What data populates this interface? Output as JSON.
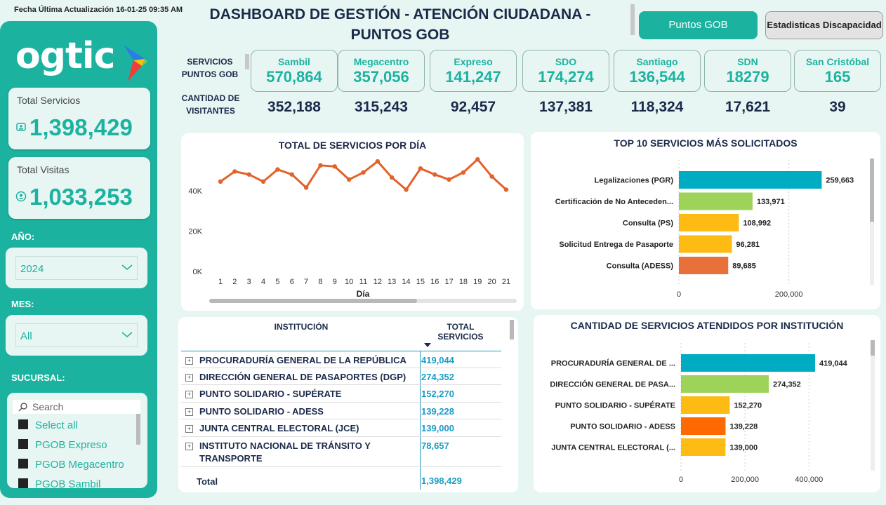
{
  "last_update": "Fecha Última Actualización 16-01-25 09:35 AM",
  "title_line1": "DASHBOARD DE GESTIÓN - ATENCIÓN CIUDADANA -",
  "title_line2": "PUNTOS GOB",
  "nav": {
    "puntos_gob": "Puntos GOB",
    "discapacidad": "Estadisticas Discapacidad"
  },
  "logo": {
    "text": "ogtic"
  },
  "kpis": {
    "total_servicios_label": "Total Servicios",
    "total_servicios_value": "1,398,429",
    "total_visitas_label": "Total Visitas",
    "total_visitas_value": "1,033,253"
  },
  "filters": {
    "year_label": "AÑO:",
    "year_value": "2024",
    "month_label": "MES:",
    "month_value": "All",
    "branch_label": "SUCURSAL:",
    "search_placeholder": "Search",
    "options": [
      "Select all",
      "PGOB Expreso",
      "PGOB Megacentro",
      "PGOB Sambil"
    ]
  },
  "row_labels": {
    "services_l1": "SERVICIOS",
    "services_l2": "PUNTOS GOB",
    "visitors_l1": "CANTIDAD DE",
    "visitors_l2": "VISITANTES"
  },
  "branches": [
    {
      "name": "Sambil",
      "services": "570,864",
      "visitors": "352,188"
    },
    {
      "name": "Megacentro",
      "services": "357,056",
      "visitors": "315,243"
    },
    {
      "name": "Expreso",
      "services": "141,247",
      "visitors": "92,457"
    },
    {
      "name": "SDO",
      "services": "174,274",
      "visitors": "137,381"
    },
    {
      "name": "Santiago",
      "services": "136,544",
      "visitors": "118,324"
    },
    {
      "name": "SDN",
      "services": "18279",
      "visitors": "17,621"
    },
    {
      "name": "San Cristóbal",
      "services": "165",
      "visitors": "39"
    }
  ],
  "table": {
    "col_institution": "INSTITUCIÓN",
    "col_total_l1": "TOTAL",
    "col_total_l2": "SERVICIOS",
    "rows": [
      {
        "name": "PROCURADURÍA GENERAL DE LA REPÚBLICA",
        "value": "419,044"
      },
      {
        "name": "DIRECCIÓN GENERAL DE PASAPORTES (DGP)",
        "value": "274,352"
      },
      {
        "name": "PUNTO SOLIDARIO - SUPÉRATE",
        "value": "152,270"
      },
      {
        "name": "PUNTO SOLIDARIO - ADESS",
        "value": "139,228"
      },
      {
        "name": "JUNTA CENTRAL ELECTORAL (JCE)",
        "value": "139,000"
      },
      {
        "name": "INSTITUTO NACIONAL DE TRÁNSITO Y TRANSPORTE",
        "value": "78,657"
      }
    ],
    "total_label": "Total",
    "total_value": "1,398,429"
  },
  "colors": {
    "teal": "#1bb3a0",
    "navy": "#1b2a4a",
    "line": "#e2622b",
    "bar_blue": "#00acc1",
    "bar_green": "#9ed35a",
    "bar_yellow": "#fdbb13",
    "bar_orange": "#e8703a",
    "bar_orange2": "#ff6a00"
  },
  "chart_data": [
    {
      "type": "line",
      "title": "TOTAL DE SERVICIOS POR DÍA",
      "xlabel": "Día",
      "ylabel": "",
      "x": [
        1,
        2,
        3,
        4,
        5,
        6,
        7,
        8,
        9,
        10,
        11,
        12,
        13,
        14,
        15,
        16,
        17,
        18,
        19,
        20,
        21
      ],
      "values": [
        44500,
        49500,
        48000,
        44500,
        50500,
        48000,
        41500,
        52500,
        52000,
        45500,
        49000,
        54500,
        46500,
        40500,
        51000,
        48000,
        45500,
        49000,
        55500,
        47000,
        40500
      ],
      "yticks": [
        0,
        20000,
        40000
      ],
      "ytick_labels": [
        "0K",
        "20K",
        "40K"
      ],
      "ylim": [
        0,
        58000
      ]
    },
    {
      "type": "bar",
      "orientation": "horizontal",
      "title": "TOP 10 SERVICIOS MÁS SOLICITADOS",
      "categories": [
        "Legalizaciones (PGR)",
        "Certificación de No Anteceden...",
        "Consulta (PS)",
        "Solicitud Entrega de Pasaporte",
        "Consulta (ADESS)"
      ],
      "values": [
        259663,
        133971,
        108992,
        96281,
        89685
      ],
      "value_labels": [
        "259,663",
        "133,971",
        "108,992",
        "96,281",
        "89,685"
      ],
      "xticks": [
        0,
        200000
      ],
      "xtick_labels": [
        "0",
        "200,000"
      ],
      "xlim": [
        0,
        300000
      ]
    },
    {
      "type": "bar",
      "orientation": "horizontal",
      "title": "CANTIDAD DE SERVICIOS ATENDIDOS POR INSTITUCIÓN",
      "categories": [
        "PROCURADURÍA GENERAL DE ...",
        "DIRECCIÓN GENERAL DE PASA...",
        "PUNTO SOLIDARIO - SUPÉRATE",
        "PUNTO SOLIDARIO - ADESS",
        "JUNTA CENTRAL ELECTORAL (..."
      ],
      "values": [
        419044,
        274352,
        152270,
        139228,
        139000
      ],
      "value_labels": [
        "419,044",
        "274,352",
        "152,270",
        "139,228",
        "139,000"
      ],
      "xticks": [
        0,
        200000,
        400000
      ],
      "xtick_labels": [
        "0",
        "200,000",
        "400,000"
      ],
      "xlim": [
        0,
        520000
      ]
    }
  ]
}
